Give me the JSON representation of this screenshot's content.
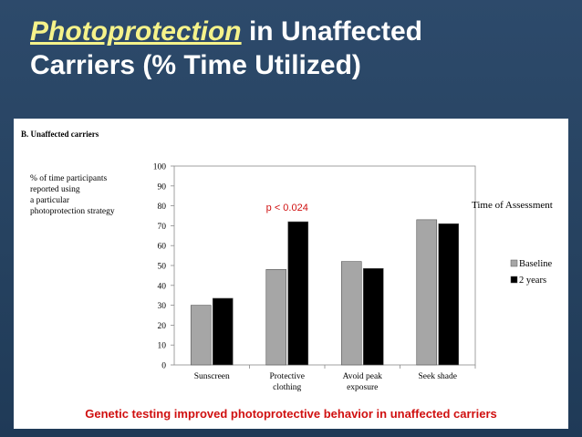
{
  "slide": {
    "title_highlight": "Photoprotection",
    "title_rest_line1": " in Unaffected",
    "title_line2": "Carriers (% Time Utilized)",
    "caption": "Genetic testing improved photoprotective behavior in unaffected carriers"
  },
  "colors": {
    "background": "#264260",
    "title_highlight": "#f5f28a",
    "title_text": "#ffffff",
    "annotation": "#d01010",
    "baseline": "#a6a6a6",
    "two_years": "#000000"
  },
  "chart_data": {
    "type": "bar",
    "panel_title": "B. Unaffected carriers",
    "ylabel_lines": [
      "% of time participants",
      "reported using",
      "a particular",
      "photoprotection strategy"
    ],
    "categories": [
      [
        "Sunscreen"
      ],
      [
        "Protective",
        "clothing"
      ],
      [
        "Avoid peak",
        "exposure"
      ],
      [
        "Seek    shade"
      ]
    ],
    "series": [
      {
        "name": "Baseline",
        "color": "#a6a6a6",
        "values": [
          30,
          48,
          52,
          73
        ]
      },
      {
        "name": "2 years",
        "color": "#000000",
        "values": [
          33.5,
          72,
          48.5,
          71
        ]
      }
    ],
    "legend_title": "Time of Assessment",
    "ylim": [
      0,
      100
    ],
    "yticks": [
      0,
      10,
      20,
      30,
      40,
      50,
      60,
      70,
      80,
      90,
      100
    ],
    "annotation": {
      "text": "p < 0.024",
      "category_index": 1
    },
    "grid": false,
    "legend_position": "right"
  }
}
